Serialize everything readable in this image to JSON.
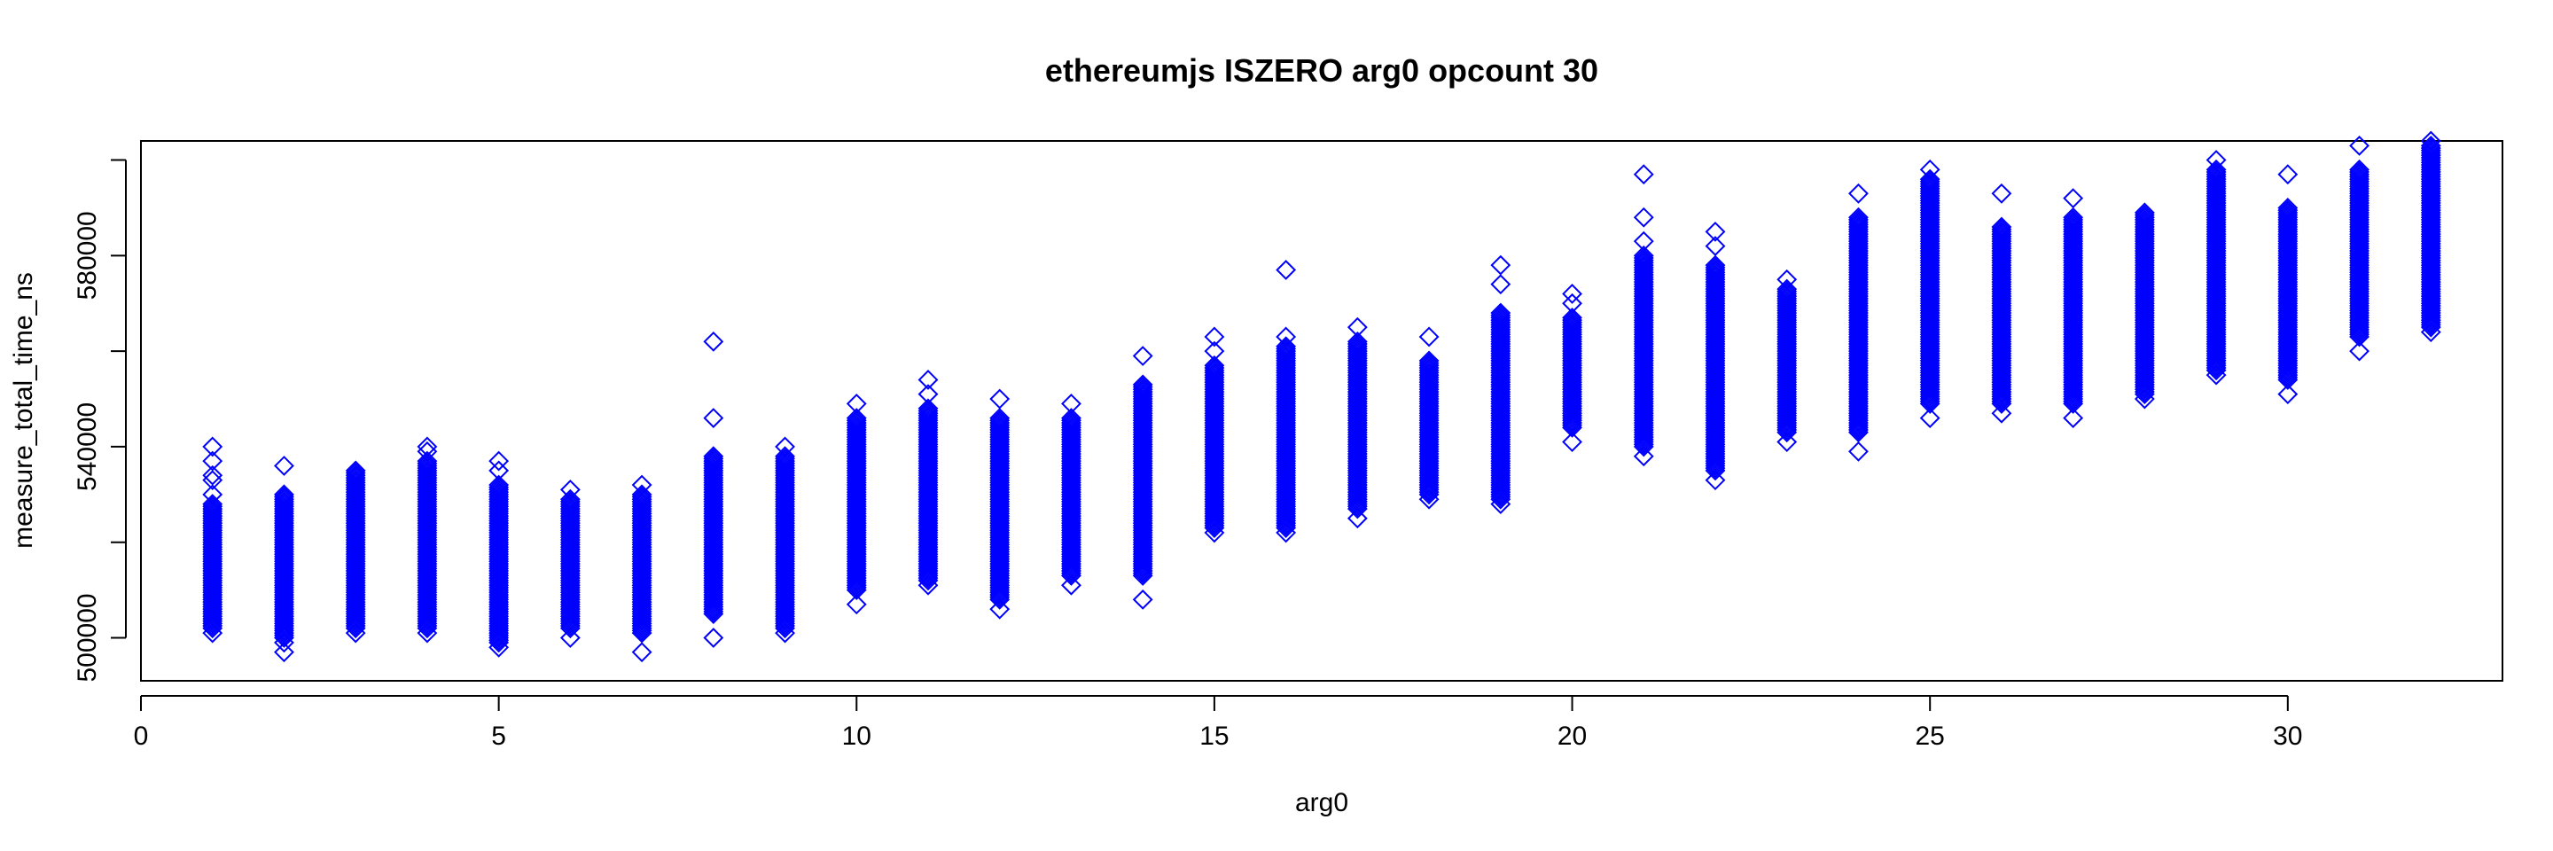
{
  "chart_data": {
    "type": "scatter",
    "title": "ethereumjs ISZERO arg0 opcount 30",
    "xlabel": "arg0",
    "ylabel": "measure_total_time_ns",
    "xlim": [
      0,
      33
    ],
    "ylim": [
      491000,
      604000
    ],
    "x_ticks": [
      0,
      5,
      10,
      15,
      20,
      25,
      30
    ],
    "x_tick_labels": [
      "0",
      "5",
      "10",
      "15",
      "20",
      "25",
      "30"
    ],
    "y_ticks": [
      500000,
      540000,
      580000
    ],
    "y_tick_labels": [
      "500000",
      "540000",
      "580000"
    ],
    "y_minor_ticks": [
      520000,
      560000,
      600000
    ],
    "marker": "diamond-open",
    "color": "#0000ff",
    "grid": false,
    "legend": "none",
    "groups": [
      {
        "x": 1,
        "min": 502000,
        "max": 528000,
        "outliers": [
          501000,
          530000,
          533000,
          534000,
          537000,
          540000
        ]
      },
      {
        "x": 2,
        "min": 500000,
        "max": 530000,
        "outliers": [
          497000,
          499000,
          536000
        ]
      },
      {
        "x": 3,
        "min": 502000,
        "max": 535000,
        "outliers": [
          501000
        ]
      },
      {
        "x": 4,
        "min": 502000,
        "max": 537000,
        "outliers": [
          501000,
          539000,
          540000
        ]
      },
      {
        "x": 5,
        "min": 499000,
        "max": 532000,
        "outliers": [
          498000,
          535000,
          537000
        ]
      },
      {
        "x": 6,
        "min": 502000,
        "max": 529000,
        "outliers": [
          500000,
          531000
        ]
      },
      {
        "x": 7,
        "min": 501000,
        "max": 530000,
        "outliers": [
          497000,
          532000
        ]
      },
      {
        "x": 8,
        "min": 505000,
        "max": 538000,
        "outliers": [
          500000,
          546000,
          562000
        ]
      },
      {
        "x": 9,
        "min": 502000,
        "max": 538000,
        "outliers": [
          501000,
          540000
        ]
      },
      {
        "x": 10,
        "min": 510000,
        "max": 546000,
        "outliers": [
          507000,
          549000
        ]
      },
      {
        "x": 11,
        "min": 512000,
        "max": 548000,
        "outliers": [
          511000,
          551000,
          554000
        ]
      },
      {
        "x": 12,
        "min": 508000,
        "max": 546000,
        "outliers": [
          506000,
          550000
        ]
      },
      {
        "x": 13,
        "min": 513000,
        "max": 546000,
        "outliers": [
          511000,
          549000
        ]
      },
      {
        "x": 14,
        "min": 513000,
        "max": 553000,
        "outliers": [
          508000,
          559000
        ]
      },
      {
        "x": 15,
        "min": 523000,
        "max": 557000,
        "outliers": [
          522000,
          560000,
          563000
        ]
      },
      {
        "x": 16,
        "min": 523000,
        "max": 561000,
        "outliers": [
          522000,
          563000,
          577000
        ]
      },
      {
        "x": 17,
        "min": 527000,
        "max": 562000,
        "outliers": [
          525000,
          565000
        ]
      },
      {
        "x": 18,
        "min": 530000,
        "max": 558000,
        "outliers": [
          529000,
          563000
        ]
      },
      {
        "x": 19,
        "min": 529000,
        "max": 568000,
        "outliers": [
          528000,
          574000,
          578000
        ]
      },
      {
        "x": 20,
        "min": 544000,
        "max": 567000,
        "outliers": [
          541000,
          570000,
          572000
        ]
      },
      {
        "x": 21,
        "min": 540000,
        "max": 580000,
        "outliers": [
          538000,
          583000,
          588000,
          597000
        ]
      },
      {
        "x": 22,
        "min": 535000,
        "max": 578000,
        "outliers": [
          533000,
          582000,
          585000
        ]
      },
      {
        "x": 23,
        "min": 543000,
        "max": 573000,
        "outliers": [
          541000,
          575000
        ]
      },
      {
        "x": 24,
        "min": 543000,
        "max": 588000,
        "outliers": [
          539000,
          593000
        ]
      },
      {
        "x": 25,
        "min": 549000,
        "max": 596000,
        "outliers": [
          546000,
          598000
        ]
      },
      {
        "x": 26,
        "min": 549000,
        "max": 586000,
        "outliers": [
          547000,
          593000
        ]
      },
      {
        "x": 27,
        "min": 549000,
        "max": 588000,
        "outliers": [
          546000,
          592000
        ]
      },
      {
        "x": 28,
        "min": 551000,
        "max": 589000,
        "outliers": [
          550000
        ]
      },
      {
        "x": 29,
        "min": 556000,
        "max": 598000,
        "outliers": [
          555000,
          600000
        ]
      },
      {
        "x": 30,
        "min": 554000,
        "max": 590000,
        "outliers": [
          551000,
          597000
        ]
      },
      {
        "x": 31,
        "min": 563000,
        "max": 598000,
        "outliers": [
          560000,
          603000
        ]
      },
      {
        "x": 32,
        "min": 565000,
        "max": 603000,
        "outliers": [
          564000,
          604000
        ]
      }
    ]
  }
}
